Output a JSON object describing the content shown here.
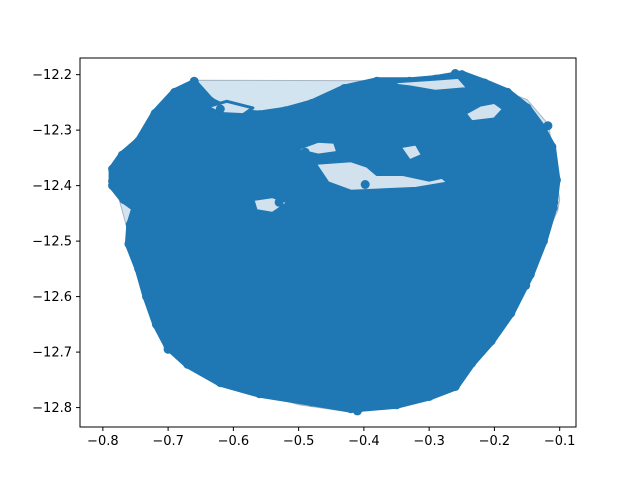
{
  "chart_data": {
    "type": "scatter",
    "title": "",
    "xlabel": "",
    "ylabel": "",
    "xlim": [
      -0.835,
      -0.075
    ],
    "ylim": [
      -12.835,
      -12.17
    ],
    "xticks": [
      -0.8,
      -0.7,
      -0.6,
      -0.5,
      -0.4,
      -0.3,
      -0.2,
      -0.1
    ],
    "xtick_labels": [
      "−0.8",
      "−0.7",
      "−0.6",
      "−0.5",
      "−0.4",
      "−0.3",
      "−0.2",
      "−0.1"
    ],
    "yticks": [
      -12.2,
      -12.3,
      -12.4,
      -12.5,
      -12.6,
      -12.7,
      -12.8
    ],
    "ytick_labels": [
      "−12.2",
      "−12.3",
      "−12.4",
      "−12.5",
      "−12.6",
      "−12.7",
      "−12.8"
    ],
    "grid": false,
    "point_color": "#1f77b4",
    "hull_fill": "#1f77b4",
    "hull_fill_opacity": 0.2,
    "hull": [
      [
        -0.783,
        -12.39
      ],
      [
        -0.775,
        -12.345
      ],
      [
        -0.66,
        -12.21
      ],
      [
        -0.355,
        -12.211
      ],
      [
        -0.26,
        -12.197
      ],
      [
        -0.15,
        -12.245
      ],
      [
        -0.117,
        -12.29
      ],
      [
        -0.1,
        -12.425
      ],
      [
        -0.103,
        -12.445
      ],
      [
        -0.16,
        -12.59
      ],
      [
        -0.23,
        -12.7
      ],
      [
        -0.255,
        -12.74
      ],
      [
        -0.41,
        -12.81
      ],
      [
        -0.5,
        -12.795
      ],
      [
        -0.64,
        -12.745
      ],
      [
        -0.71,
        -12.68
      ],
      [
        -0.745,
        -12.555
      ]
    ],
    "cloud_outline": [
      [
        -0.76,
        -12.505
      ],
      [
        -0.745,
        -12.55
      ],
      [
        -0.733,
        -12.6
      ],
      [
        -0.718,
        -12.65
      ],
      [
        -0.7,
        -12.69
      ],
      [
        -0.67,
        -12.722
      ],
      [
        -0.62,
        -12.755
      ],
      [
        -0.56,
        -12.775
      ],
      [
        -0.48,
        -12.79
      ],
      [
        -0.42,
        -12.802
      ],
      [
        -0.35,
        -12.795
      ],
      [
        -0.3,
        -12.78
      ],
      [
        -0.26,
        -12.762
      ],
      [
        -0.235,
        -12.72
      ],
      [
        -0.205,
        -12.68
      ],
      [
        -0.175,
        -12.63
      ],
      [
        -0.145,
        -12.56
      ],
      [
        -0.125,
        -12.5
      ],
      [
        -0.11,
        -12.44
      ],
      [
        -0.105,
        -12.39
      ],
      [
        -0.112,
        -12.33
      ],
      [
        -0.128,
        -12.295
      ],
      [
        -0.15,
        -12.26
      ],
      [
        -0.18,
        -12.232
      ],
      [
        -0.215,
        -12.215
      ],
      [
        -0.25,
        -12.2
      ],
      [
        -0.29,
        -12.208
      ],
      [
        -0.33,
        -12.212
      ],
      [
        -0.38,
        -12.212
      ],
      [
        -0.43,
        -12.225
      ],
      [
        -0.48,
        -12.252
      ],
      [
        -0.52,
        -12.265
      ],
      [
        -0.56,
        -12.272
      ],
      [
        -0.6,
        -12.268
      ],
      [
        -0.635,
        -12.248
      ],
      [
        -0.66,
        -12.215
      ],
      [
        -0.69,
        -12.232
      ],
      [
        -0.72,
        -12.27
      ],
      [
        -0.745,
        -12.32
      ],
      [
        -0.77,
        -12.345
      ],
      [
        -0.785,
        -12.37
      ],
      [
        -0.785,
        -12.4
      ],
      [
        -0.768,
        -12.425
      ],
      [
        -0.75,
        -12.44
      ],
      [
        -0.758,
        -12.47
      ]
    ],
    "cloud_gaps": [
      [
        [
          -0.64,
          -12.258
        ],
        [
          -0.61,
          -12.248
        ],
        [
          -0.57,
          -12.26
        ],
        [
          -0.585,
          -12.272
        ],
        [
          -0.62,
          -12.27
        ]
      ],
      [
        [
          -0.38,
          -12.215
        ],
        [
          -0.29,
          -12.208
        ],
        [
          -0.255,
          -12.205
        ],
        [
          -0.24,
          -12.225
        ],
        [
          -0.29,
          -12.23
        ],
        [
          -0.33,
          -12.222
        ]
      ],
      [
        [
          -0.245,
          -12.27
        ],
        [
          -0.222,
          -12.255
        ],
        [
          -0.2,
          -12.25
        ],
        [
          -0.186,
          -12.262
        ],
        [
          -0.2,
          -12.28
        ],
        [
          -0.235,
          -12.285
        ]
      ],
      [
        [
          -0.505,
          -12.335
        ],
        [
          -0.47,
          -12.32
        ],
        [
          -0.445,
          -12.322
        ],
        [
          -0.44,
          -12.34
        ],
        [
          -0.47,
          -12.345
        ]
      ],
      [
        [
          -0.345,
          -12.33
        ],
        [
          -0.32,
          -12.325
        ],
        [
          -0.31,
          -12.345
        ],
        [
          -0.33,
          -12.355
        ]
      ],
      [
        [
          -0.475,
          -12.36
        ],
        [
          -0.42,
          -12.355
        ],
        [
          -0.395,
          -12.365
        ],
        [
          -0.38,
          -12.38
        ],
        [
          -0.34,
          -12.38
        ],
        [
          -0.3,
          -12.39
        ],
        [
          -0.28,
          -12.385
        ],
        [
          -0.27,
          -12.395
        ],
        [
          -0.32,
          -12.405
        ],
        [
          -0.38,
          -12.408
        ],
        [
          -0.42,
          -12.41
        ],
        [
          -0.455,
          -12.395
        ]
      ],
      [
        [
          -0.57,
          -12.425
        ],
        [
          -0.54,
          -12.42
        ],
        [
          -0.515,
          -12.43
        ],
        [
          -0.54,
          -12.45
        ],
        [
          -0.565,
          -12.445
        ]
      ]
    ],
    "outliers": [
      [
        -0.741,
        -12.555
      ],
      [
        -0.152,
        -12.58
      ],
      [
        -0.156,
        -12.577
      ],
      [
        -0.398,
        -12.398
      ],
      [
        -0.7,
        -12.695
      ],
      [
        -0.785,
        -12.392
      ],
      [
        -0.26,
        -12.198
      ],
      [
        -0.66,
        -12.212
      ],
      [
        -0.118,
        -12.292
      ],
      [
        -0.109,
        -12.43
      ],
      [
        -0.41,
        -12.806
      ],
      [
        -0.465,
        -12.791
      ],
      [
        -0.255,
        -12.741
      ],
      [
        -0.355,
        -12.214
      ],
      [
        -0.64,
        -12.245
      ],
      [
        -0.62,
        -12.262
      ],
      [
        -0.53,
        -12.43
      ],
      [
        -0.49,
        -12.34
      ],
      [
        -0.21,
        -12.24
      ],
      [
        -0.305,
        -12.37
      ]
    ]
  }
}
